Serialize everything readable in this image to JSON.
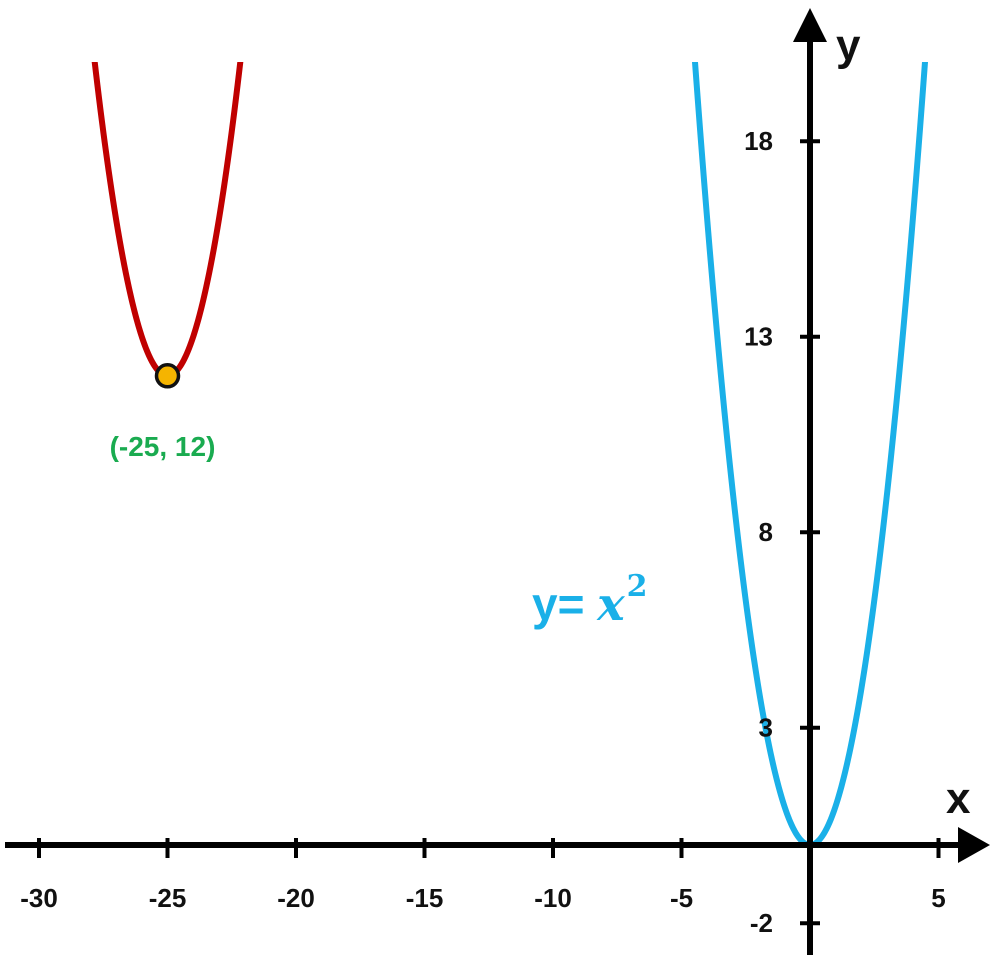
{
  "chart_data": {
    "type": "line",
    "xlabel": "x",
    "ylabel": "y",
    "xlim": [
      -31.2,
      6.5
    ],
    "ylim": [
      -3.1,
      21.0
    ],
    "x_ticks": [
      -30,
      -25,
      -20,
      -15,
      -10,
      -5,
      5
    ],
    "y_ticks": [
      -2,
      3,
      8,
      13,
      18
    ],
    "grid": false,
    "series": [
      {
        "name": "y= x²",
        "equation_y_part": "y=",
        "equation_x_part": "x",
        "equation_exponent": "2",
        "vertex": [
          0,
          0
        ],
        "a": 1,
        "x_range": [
          -4.5,
          4.5
        ],
        "color": "#1ab0e8"
      },
      {
        "name": "",
        "vertex": [
          -25,
          12
        ],
        "a": 1,
        "x_range": [
          -27.9,
          -22.1
        ],
        "color": "#c00000"
      }
    ],
    "points": [
      {
        "x": -25,
        "y": 12,
        "label": "(-25, 12)",
        "fill": "#f5b400",
        "label_color": "#1aab50"
      }
    ],
    "axis_color": "#000000"
  }
}
